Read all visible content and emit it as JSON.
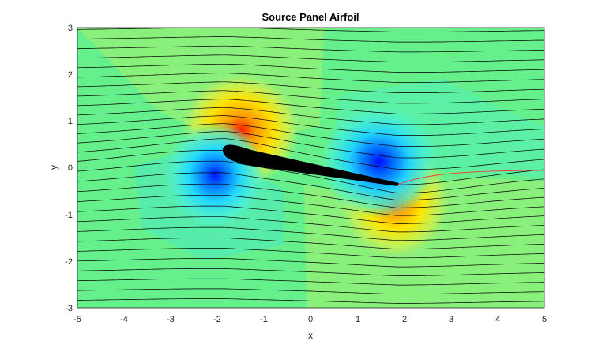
{
  "chart_data": {
    "type": "contour",
    "title": "Source Panel Airfoil",
    "xlabel": "x",
    "ylabel": "y",
    "xlim": [
      -5,
      5
    ],
    "ylim": [
      -3,
      3
    ],
    "xticks": [
      "-5",
      "-4",
      "-3",
      "-2",
      "-1",
      "0",
      "1",
      "2",
      "3",
      "4",
      "5"
    ],
    "yticks": [
      "-3",
      "-2",
      "-1",
      "0",
      "1",
      "2",
      "3"
    ],
    "grid": false,
    "colormap": "jet",
    "background_color": "#66f08c",
    "airfoil": {
      "leading_edge": [
        -1.85,
        0.35
      ],
      "trailing_edge": [
        1.85,
        -0.37
      ],
      "max_thickness": 0.22,
      "color": "#000000"
    },
    "pressure_features": [
      {
        "kind": "high",
        "center": [
          -1.65,
          0.55
        ],
        "color": "#ff2200"
      },
      {
        "kind": "low",
        "center": [
          -1.9,
          0.05
        ],
        "color": "#0a1aff"
      },
      {
        "kind": "low",
        "center": [
          1.6,
          0.0
        ],
        "color": "#0a1aff"
      },
      {
        "kind": "high",
        "center": [
          1.85,
          -0.47
        ],
        "color": "#ff3300"
      }
    ],
    "streamlines": {
      "count": 29,
      "y_start": [
        -2.85,
        2.95
      ],
      "color": "#000000",
      "highlight_color": "#ff3333",
      "highlight_start_y": -0.05
    }
  }
}
